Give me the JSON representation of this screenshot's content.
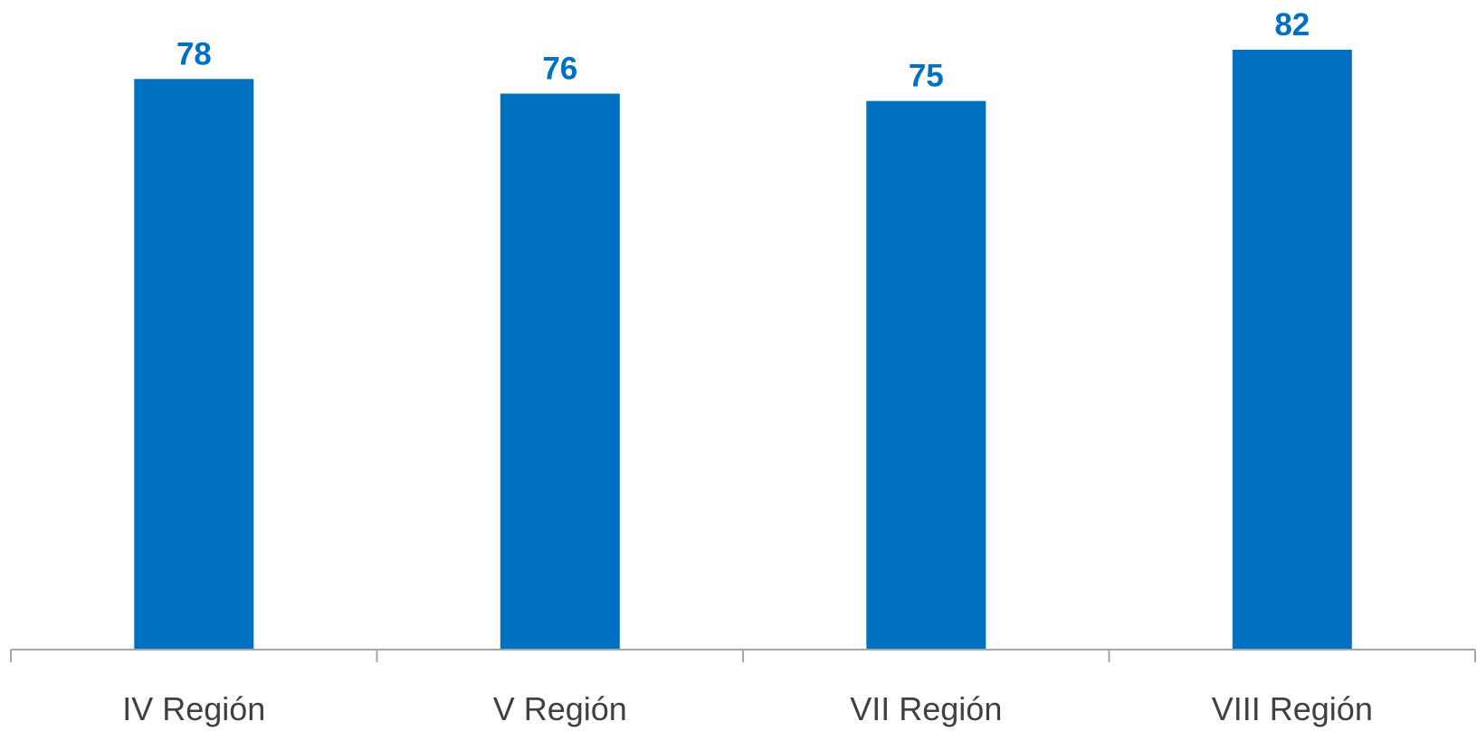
{
  "chart_data": {
    "type": "bar",
    "categories": [
      "IV Región",
      "V Región",
      "VII Región",
      "VIII Región"
    ],
    "values": [
      78,
      76,
      75,
      82
    ],
    "title": "",
    "xlabel": "",
    "ylabel": "",
    "ylim": [
      0,
      82
    ],
    "grid": false,
    "legend": "none",
    "data_labels": true
  },
  "colors": {
    "bar": "#0070C0",
    "value_label": "#0070C0",
    "axis": "#A6A6A6",
    "category_label": "#404040"
  }
}
